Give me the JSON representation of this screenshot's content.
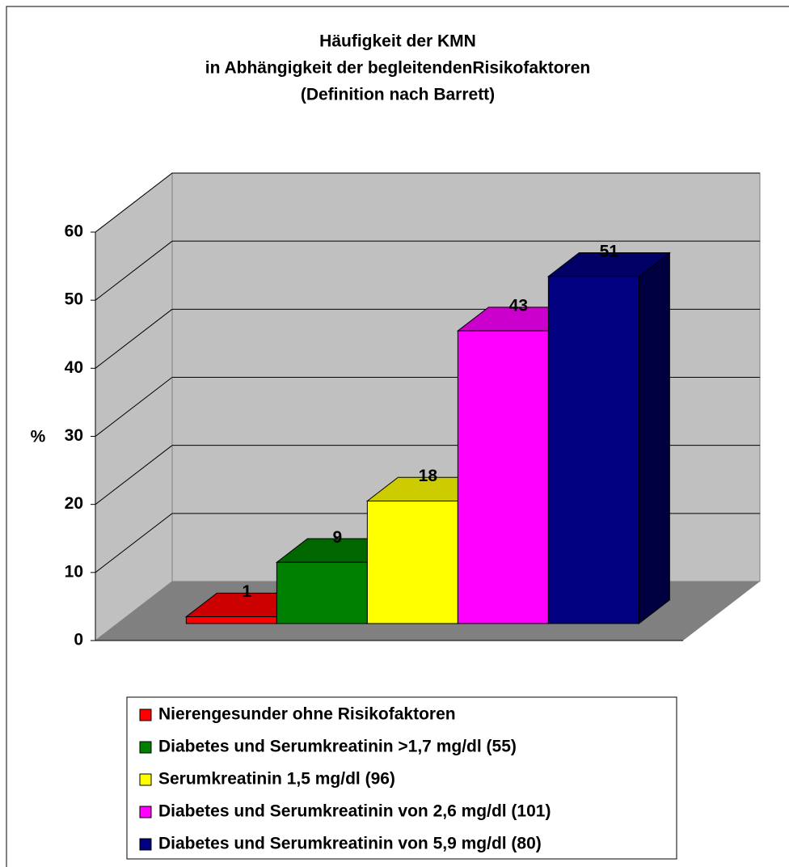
{
  "chart_data": {
    "type": "bar3d",
    "title": [
      "Häufigkeit der KMN",
      "in Abhängigkeit der begleitendenRisikofaktoren",
      "(Definition nach Barrett)"
    ],
    "y_label": "%",
    "categories": [
      null
    ],
    "series": [
      {
        "name": "Nierengesunder ohne Risikofaktoren",
        "color": "#ff0000",
        "values": [
          1
        ]
      },
      {
        "name": "Diabetes und Serumkreatinin >1,7 mg/dl (55)",
        "color": "#008000",
        "values": [
          9
        ]
      },
      {
        "name": "Serumkreatinin 1,5 mg/dl (96)",
        "color": "#ffff00",
        "values": [
          18
        ]
      },
      {
        "name": "Diabetes und Serumkreatinin von 2,6 mg/dl (101)",
        "color": "#ff00ff",
        "values": [
          43
        ]
      },
      {
        "name": "Diabetes und Serumkreatinin von 5,9 mg/dl (80)",
        "color": "#000080",
        "values": [
          51
        ]
      }
    ],
    "ylim": [
      0,
      60
    ],
    "yticks": [
      0,
      10,
      20,
      30,
      40,
      50,
      60
    ],
    "grid": true,
    "legend": "bottom"
  }
}
